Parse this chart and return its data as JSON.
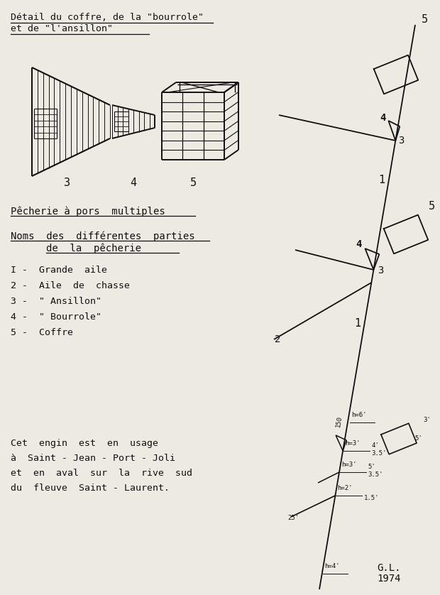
{
  "title_line1": "Détail du coffre, de la \"bourrole\"",
  "title_line2": "et de \"l'ansillon\"",
  "subtitle1": "Pêcherie à pors  multiples",
  "subtitle2_line1": "Noms  des  différentes  parties",
  "subtitle2_line2": "de  la  pêcherie",
  "legend": [
    "I -  Grande  aile",
    "2 -  Aile  de  chasse",
    "3 -  \" Ansillon\"",
    "4 -  \" Bourrole\"",
    "5 -  Coffre"
  ],
  "footer_line1": "Cet  engin  est  en  usage",
  "footer_line2": "à  Saint - Jean - Port - Joli",
  "footer_line3": "et  en  aval  sur  la  rive  sud",
  "footer_line4": "du  fleuve  Saint - Laurent.",
  "signature": "G.L.\n1974",
  "bg_color": "#ede9e3"
}
